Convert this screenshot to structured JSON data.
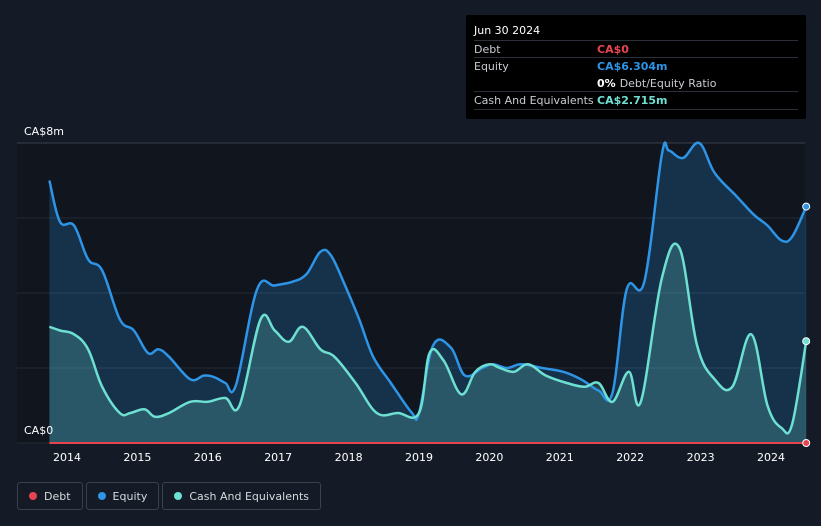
{
  "tooltip": {
    "date": "Jun 30 2024",
    "rows": [
      {
        "name": "Debt",
        "value": "CA$0",
        "color": "#e64550"
      },
      {
        "name": "Equity",
        "value": "CA$6.304m",
        "color": "#2d94e6"
      },
      {
        "name": "",
        "value": "0%",
        "suffix": "Debt/Equity Ratio",
        "color": "#ffffff"
      },
      {
        "name": "Cash And Equivalents",
        "value": "CA$2.715m",
        "color": "#6de0d2"
      }
    ]
  },
  "legend": [
    {
      "label": "Debt",
      "color": "#e64550"
    },
    {
      "label": "Equity",
      "color": "#2d94e6"
    },
    {
      "label": "Cash And Equivalents",
      "color": "#6de0d2"
    }
  ],
  "chart_data": {
    "type": "area",
    "y_top_label": "CA$8m",
    "y_bottom_label": "CA$0",
    "ylim": [
      0,
      8
    ],
    "xlim": [
      2013.75,
      2024.5
    ],
    "x_tick_labels": [
      "2014",
      "2015",
      "2016",
      "2017",
      "2018",
      "2019",
      "2020",
      "2021",
      "2022",
      "2023",
      "2024"
    ],
    "series": [
      {
        "name": "Equity",
        "color": "#2d94e6",
        "points": [
          [
            2013.75,
            7.0
          ],
          [
            2013.9,
            5.9
          ],
          [
            2014.1,
            5.8
          ],
          [
            2014.3,
            4.9
          ],
          [
            2014.5,
            4.6
          ],
          [
            2014.75,
            3.3
          ],
          [
            2014.95,
            3.0
          ],
          [
            2015.15,
            2.4
          ],
          [
            2015.3,
            2.5
          ],
          [
            2015.45,
            2.3
          ],
          [
            2015.75,
            1.7
          ],
          [
            2015.95,
            1.8
          ],
          [
            2016.1,
            1.75
          ],
          [
            2016.25,
            1.6
          ],
          [
            2016.4,
            1.55
          ],
          [
            2016.7,
            4.1
          ],
          [
            2016.95,
            4.2
          ],
          [
            2017.2,
            4.3
          ],
          [
            2017.4,
            4.5
          ],
          [
            2017.6,
            5.1
          ],
          [
            2017.75,
            5.0
          ],
          [
            2017.95,
            4.2
          ],
          [
            2018.15,
            3.3
          ],
          [
            2018.35,
            2.3
          ],
          [
            2018.6,
            1.6
          ],
          [
            2018.9,
            0.8
          ],
          [
            2019.0,
            0.8
          ],
          [
            2019.2,
            2.6
          ],
          [
            2019.45,
            2.55
          ],
          [
            2019.65,
            1.8
          ],
          [
            2019.9,
            2.0
          ],
          [
            2020.05,
            2.1
          ],
          [
            2020.25,
            2.0
          ],
          [
            2020.45,
            2.1
          ],
          [
            2020.75,
            2.0
          ],
          [
            2021.05,
            1.9
          ],
          [
            2021.3,
            1.7
          ],
          [
            2021.55,
            1.4
          ],
          [
            2021.75,
            1.35
          ],
          [
            2021.95,
            4.1
          ],
          [
            2022.2,
            4.3
          ],
          [
            2022.45,
            7.7
          ],
          [
            2022.55,
            7.8
          ],
          [
            2022.75,
            7.6
          ],
          [
            2022.98,
            8.0
          ],
          [
            2023.2,
            7.2
          ],
          [
            2023.5,
            6.6
          ],
          [
            2023.75,
            6.1
          ],
          [
            2023.95,
            5.8
          ],
          [
            2024.15,
            5.4
          ],
          [
            2024.3,
            5.5
          ],
          [
            2024.5,
            6.304
          ]
        ]
      },
      {
        "name": "Cash And Equivalents",
        "color": "#6de0d2",
        "points": [
          [
            2013.75,
            3.1
          ],
          [
            2013.9,
            3.0
          ],
          [
            2014.1,
            2.9
          ],
          [
            2014.3,
            2.5
          ],
          [
            2014.5,
            1.5
          ],
          [
            2014.75,
            0.8
          ],
          [
            2014.9,
            0.8
          ],
          [
            2015.1,
            0.9
          ],
          [
            2015.25,
            0.7
          ],
          [
            2015.45,
            0.8
          ],
          [
            2015.75,
            1.1
          ],
          [
            2016.0,
            1.1
          ],
          [
            2016.25,
            1.2
          ],
          [
            2016.45,
            1.0
          ],
          [
            2016.75,
            3.3
          ],
          [
            2016.95,
            3.0
          ],
          [
            2017.15,
            2.7
          ],
          [
            2017.35,
            3.1
          ],
          [
            2017.6,
            2.5
          ],
          [
            2017.8,
            2.3
          ],
          [
            2018.1,
            1.6
          ],
          [
            2018.4,
            0.8
          ],
          [
            2018.7,
            0.8
          ],
          [
            2019.0,
            0.8
          ],
          [
            2019.15,
            2.4
          ],
          [
            2019.35,
            2.2
          ],
          [
            2019.6,
            1.3
          ],
          [
            2019.8,
            1.9
          ],
          [
            2020.0,
            2.1
          ],
          [
            2020.15,
            2.0
          ],
          [
            2020.35,
            1.9
          ],
          [
            2020.55,
            2.1
          ],
          [
            2020.8,
            1.8
          ],
          [
            2021.1,
            1.6
          ],
          [
            2021.35,
            1.5
          ],
          [
            2021.55,
            1.6
          ],
          [
            2021.75,
            1.1
          ],
          [
            2021.98,
            1.9
          ],
          [
            2022.15,
            1.1
          ],
          [
            2022.45,
            4.4
          ],
          [
            2022.7,
            5.2
          ],
          [
            2022.95,
            2.6
          ],
          [
            2023.2,
            1.7
          ],
          [
            2023.45,
            1.5
          ],
          [
            2023.72,
            2.9
          ],
          [
            2023.95,
            1.0
          ],
          [
            2024.15,
            0.4
          ],
          [
            2024.3,
            0.5
          ],
          [
            2024.5,
            2.715
          ]
        ]
      },
      {
        "name": "Debt",
        "color": "#e64550",
        "points": [
          [
            2013.75,
            0
          ],
          [
            2024.5,
            0
          ]
        ]
      }
    ]
  }
}
